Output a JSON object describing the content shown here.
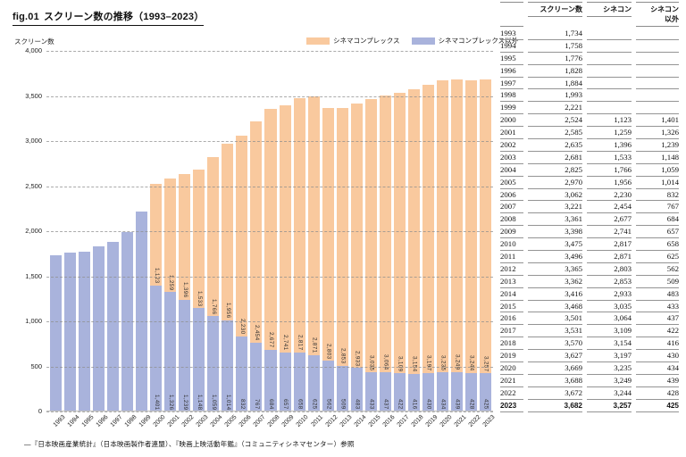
{
  "figure": {
    "fig_label": "fig.01",
    "title": "スクリーン数の推移（1993–2023）",
    "source_note": "―『日本映画産業統計』（日本映画製作者連盟）、『映画上映活動年鑑』（コミュニティシネマセンター）参照"
  },
  "chart_data": {
    "type": "bar",
    "stacked": true,
    "title": "スクリーン数の推移（1993–2023）",
    "ylabel": "スクリーン数",
    "xlabel": "",
    "ylim": [
      0,
      4000
    ],
    "ytick_step": 500,
    "yticks": [
      "4,000",
      "3,500",
      "3,000",
      "2,500",
      "2,000",
      "1,500",
      "1,000",
      "500",
      "0"
    ],
    "grid": "horizontal-dashed",
    "legend_position": "top-right",
    "legend": [
      {
        "name": "シネマコンプレックス",
        "color": "#f9c99e"
      },
      {
        "name": "シネマコンプレックス以外",
        "color": "#a9b3dc"
      }
    ],
    "categories": [
      "1993",
      "1994",
      "1995",
      "1996",
      "1997",
      "1998",
      "1999",
      "2000",
      "2001",
      "2002",
      "2003",
      "2004",
      "2005",
      "2006",
      "2007",
      "2008",
      "2009",
      "2010",
      "2011",
      "2012",
      "2013",
      "2014",
      "2015",
      "2016",
      "2017",
      "2018",
      "2019",
      "2020",
      "2021",
      "2022",
      "2023"
    ],
    "series": [
      {
        "name": "シネマコンプレックス",
        "values": [
          null,
          null,
          null,
          null,
          null,
          null,
          null,
          1123,
          1259,
          1396,
          1533,
          1766,
          1956,
          2230,
          2454,
          2677,
          2741,
          2817,
          2871,
          2803,
          2853,
          2933,
          3035,
          3064,
          3109,
          3154,
          3197,
          3235,
          3249,
          3244,
          3257
        ]
      },
      {
        "name": "シネマコンプレックス以外",
        "values": [
          1734,
          1758,
          1776,
          1828,
          1884,
          1993,
          2221,
          1401,
          1326,
          1239,
          1148,
          1059,
          1014,
          832,
          767,
          684,
          657,
          658,
          625,
          562,
          509,
          483,
          433,
          437,
          422,
          416,
          430,
          434,
          439,
          428,
          425
        ]
      }
    ],
    "bar_value_labels": "shown rotated on bars from 2000 onward"
  },
  "table": {
    "headers": {
      "year": "",
      "screens": "スクリーン数",
      "cinecon": "シネコン",
      "other_line1": "シネコン",
      "other_line2": "以外"
    },
    "rows": [
      {
        "year": "1993",
        "screens": "1,734",
        "cinecon": "",
        "other": ""
      },
      {
        "year": "1994",
        "screens": "1,758",
        "cinecon": "",
        "other": ""
      },
      {
        "year": "1995",
        "screens": "1,776",
        "cinecon": "",
        "other": ""
      },
      {
        "year": "1996",
        "screens": "1,828",
        "cinecon": "",
        "other": ""
      },
      {
        "year": "1997",
        "screens": "1,884",
        "cinecon": "",
        "other": ""
      },
      {
        "year": "1998",
        "screens": "1,993",
        "cinecon": "",
        "other": ""
      },
      {
        "year": "1999",
        "screens": "2,221",
        "cinecon": "",
        "other": ""
      },
      {
        "year": "2000",
        "screens": "2,524",
        "cinecon": "1,123",
        "other": "1,401"
      },
      {
        "year": "2001",
        "screens": "2,585",
        "cinecon": "1,259",
        "other": "1,326"
      },
      {
        "year": "2002",
        "screens": "2,635",
        "cinecon": "1,396",
        "other": "1,239"
      },
      {
        "year": "2003",
        "screens": "2,681",
        "cinecon": "1,533",
        "other": "1,148"
      },
      {
        "year": "2004",
        "screens": "2,825",
        "cinecon": "1,766",
        "other": "1,059"
      },
      {
        "year": "2005",
        "screens": "2,970",
        "cinecon": "1,956",
        "other": "1,014"
      },
      {
        "year": "2006",
        "screens": "3,062",
        "cinecon": "2,230",
        "other": "832"
      },
      {
        "year": "2007",
        "screens": "3,221",
        "cinecon": "2,454",
        "other": "767"
      },
      {
        "year": "2008",
        "screens": "3,361",
        "cinecon": "2,677",
        "other": "684"
      },
      {
        "year": "2009",
        "screens": "3,398",
        "cinecon": "2,741",
        "other": "657"
      },
      {
        "year": "2010",
        "screens": "3,475",
        "cinecon": "2,817",
        "other": "658"
      },
      {
        "year": "2011",
        "screens": "3,496",
        "cinecon": "2,871",
        "other": "625"
      },
      {
        "year": "2012",
        "screens": "3,365",
        "cinecon": "2,803",
        "other": "562"
      },
      {
        "year": "2013",
        "screens": "3,362",
        "cinecon": "2,853",
        "other": "509"
      },
      {
        "year": "2014",
        "screens": "3,416",
        "cinecon": "2,933",
        "other": "483"
      },
      {
        "year": "2015",
        "screens": "3,468",
        "cinecon": "3,035",
        "other": "433"
      },
      {
        "year": "2016",
        "screens": "3,501",
        "cinecon": "3,064",
        "other": "437"
      },
      {
        "year": "2017",
        "screens": "3,531",
        "cinecon": "3,109",
        "other": "422"
      },
      {
        "year": "2018",
        "screens": "3,570",
        "cinecon": "3,154",
        "other": "416"
      },
      {
        "year": "2019",
        "screens": "3,627",
        "cinecon": "3,197",
        "other": "430"
      },
      {
        "year": "2020",
        "screens": "3,669",
        "cinecon": "3,235",
        "other": "434"
      },
      {
        "year": "2021",
        "screens": "3,688",
        "cinecon": "3,249",
        "other": "439"
      },
      {
        "year": "2022",
        "screens": "3,672",
        "cinecon": "3,244",
        "other": "428"
      },
      {
        "year": "2023",
        "screens": "3,682",
        "cinecon": "3,257",
        "other": "425",
        "bold": true
      }
    ]
  }
}
